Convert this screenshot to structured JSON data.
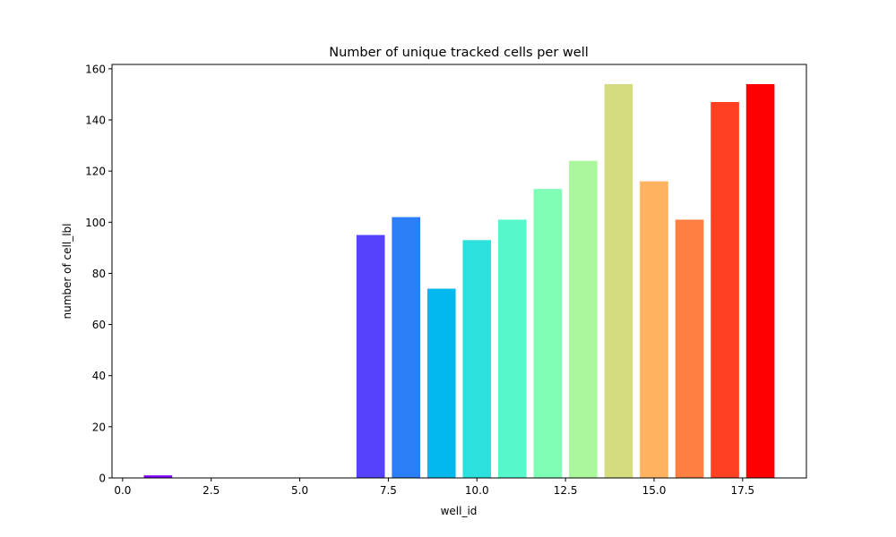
{
  "chart_data": {
    "type": "bar",
    "title": "Number of unique tracked cells per well",
    "xlabel": "well_id",
    "ylabel": "number of cell_lbl",
    "x": [
      1,
      7,
      8,
      9,
      10,
      11,
      12,
      13,
      14,
      15,
      16,
      17,
      18
    ],
    "values": [
      1,
      95,
      102,
      74,
      93,
      101,
      113,
      124,
      154,
      116,
      101,
      147,
      154
    ],
    "colors": [
      "#7f00ff",
      "#5641fd",
      "#2c7ef7",
      "#02b8ec",
      "#2ce0dd",
      "#56f7cb",
      "#7ffeb6",
      "#abf79e",
      "#d4dc7f",
      "#ffb360",
      "#ff7e41",
      "#ff4121",
      "#ff0000"
    ],
    "xlim": [
      -0.3,
      19.3
    ],
    "ylim": [
      0,
      161.7
    ],
    "xticks": [
      0.0,
      2.5,
      5.0,
      7.5,
      10.0,
      12.5,
      15.0,
      17.5
    ],
    "xtick_labels": [
      "0.0",
      "2.5",
      "5.0",
      "7.5",
      "10.0",
      "12.5",
      "15.0",
      "17.5"
    ],
    "yticks": [
      0,
      20,
      40,
      60,
      80,
      100,
      120,
      140,
      160
    ],
    "ytick_labels": [
      "0",
      "20",
      "40",
      "60",
      "80",
      "100",
      "120",
      "140",
      "160"
    ],
    "bar_width": 0.8,
    "grid": false,
    "legend": "none"
  }
}
